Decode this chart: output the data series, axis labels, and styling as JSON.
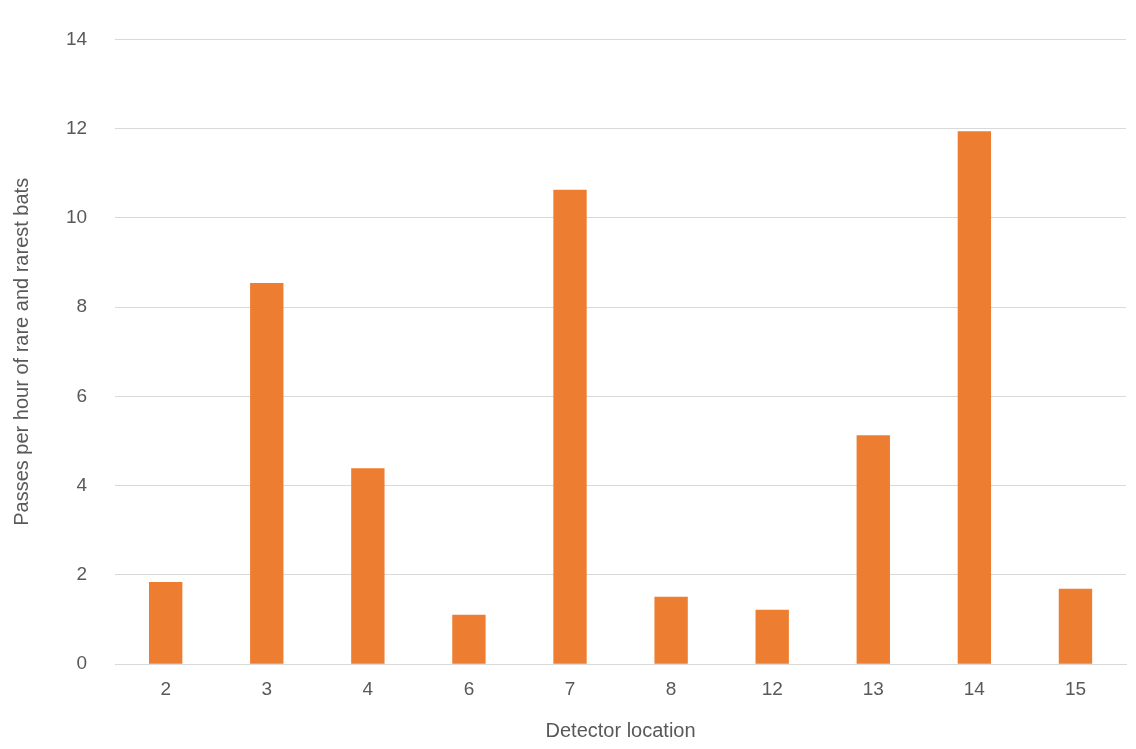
{
  "chart_data": {
    "type": "bar",
    "xlabel": "Detector location",
    "ylabel": "Passes per hour of rare and rarest bats",
    "categories": [
      "2",
      "3",
      "4",
      "6",
      "7",
      "8",
      "12",
      "13",
      "14",
      "15"
    ],
    "values": [
      1.84,
      8.54,
      4.39,
      1.11,
      10.63,
      1.51,
      1.22,
      5.13,
      11.94,
      1.69
    ],
    "color": "#ed7d31",
    "ylim": [
      0,
      14
    ],
    "yticks": [
      0,
      2,
      4,
      6,
      8,
      10,
      12,
      14
    ],
    "grid": "y",
    "legend": false
  }
}
